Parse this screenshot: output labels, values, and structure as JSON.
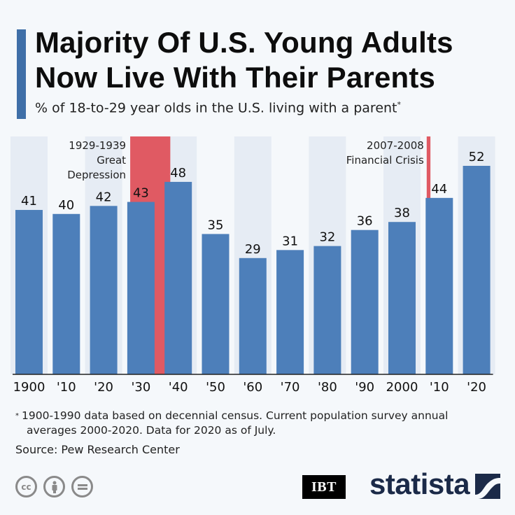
{
  "title": "Majority Of U.S. Young Adults Now Live With Their Parents",
  "subtitle": "% of 18-to-29 year olds in the U.S. living with a parent",
  "subtitle_marker": "*",
  "colors": {
    "bar": "#4d7fba",
    "band": "#e6ecf4",
    "highlight": "#e05a63",
    "accent": "#3f6fa8"
  },
  "chart_data": {
    "type": "bar",
    "title": "Majority Of U.S. Young Adults Now Live With Their Parents",
    "ylabel": "% of 18-to-29 year olds in the U.S. living with a parent",
    "categories": [
      "1900",
      "'10",
      "'20",
      "'30",
      "'40",
      "'50",
      "'60",
      "'70",
      "'80",
      "'90",
      "2000",
      "'10",
      "'20"
    ],
    "values": [
      41,
      40,
      42,
      43,
      48,
      35,
      29,
      31,
      32,
      36,
      38,
      44,
      52
    ],
    "ylim": [
      0,
      52
    ],
    "annotations": [
      {
        "label_lines": [
          "1929-1939",
          "Great",
          "Depression"
        ],
        "from_year": 1929,
        "to_year": 1939
      },
      {
        "label_lines": [
          "2007-2008",
          "Financial Crisis"
        ],
        "from_year": 2007,
        "to_year": 2008
      }
    ]
  },
  "footnote": {
    "marker": "*",
    "line1": "1900-1990 data based on decennial census. Current population survey annual",
    "line2": "averages 2000-2020. Data for 2020 as of July."
  },
  "source": "Source: Pew Research Center",
  "licenses": [
    "cc-icon",
    "attribution-icon",
    "no-derivatives-icon"
  ],
  "partner_logo": "IBT",
  "brand": "statista"
}
